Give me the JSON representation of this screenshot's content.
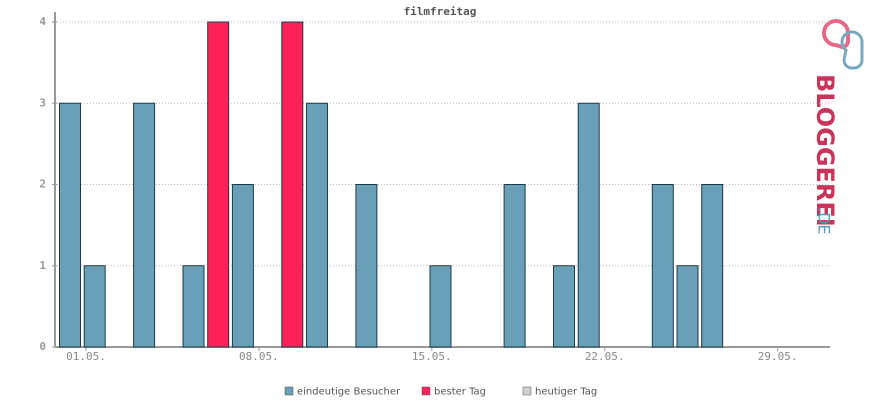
{
  "chart_data": {
    "type": "bar",
    "title": "filmfreitag",
    "categories": [
      "01.05.",
      null,
      null,
      null,
      null,
      null,
      null,
      "08.05.",
      null,
      null,
      null,
      null,
      null,
      null,
      "15.05.",
      null,
      null,
      null,
      null,
      null,
      null,
      "22.05.",
      null,
      null,
      null,
      null,
      null,
      null,
      "29.05.",
      null,
      null
    ],
    "series": [
      {
        "name": "eindeutige Besucher",
        "color": "#6a9fb8",
        "values": [
          3,
          1,
          null,
          3,
          null,
          1,
          null,
          2,
          null,
          null,
          3,
          null,
          2,
          null,
          null,
          1,
          null,
          null,
          2,
          null,
          1,
          3,
          null,
          null,
          2,
          1,
          2,
          null,
          null,
          null,
          null
        ]
      },
      {
        "name": "bester Tag",
        "color": "#ff2157",
        "values": [
          null,
          null,
          null,
          null,
          null,
          null,
          4,
          null,
          null,
          4,
          null,
          null,
          null,
          null,
          null,
          null,
          null,
          null,
          null,
          null,
          null,
          null,
          null,
          null,
          null,
          null,
          null,
          null,
          null,
          null,
          null
        ]
      },
      {
        "name": "heutiger Tag",
        "color": "#d0d0d0",
        "values": [
          null,
          null,
          null,
          null,
          null,
          null,
          null,
          null,
          null,
          null,
          null,
          null,
          null,
          null,
          null,
          null,
          null,
          null,
          null,
          null,
          null,
          null,
          null,
          null,
          null,
          null,
          null,
          null,
          null,
          null,
          null
        ]
      }
    ],
    "ylim": [
      0,
      4
    ],
    "yticks": [
      0,
      1,
      2,
      3,
      4
    ],
    "grid": true
  },
  "logo": {
    "text": "BLOGGEREI",
    "suffix": ".DE"
  }
}
